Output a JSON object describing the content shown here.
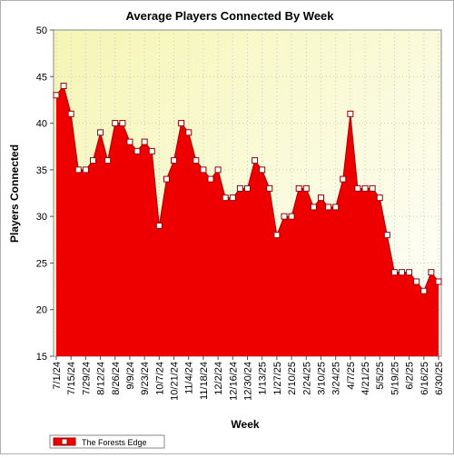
{
  "chart_data": {
    "type": "area",
    "title": "Average Players Connected By Week",
    "xlabel": "Week",
    "ylabel": "Players Connected",
    "ylim": [
      15,
      50
    ],
    "yticks": [
      15,
      20,
      25,
      30,
      35,
      40,
      45,
      50
    ],
    "grid": true,
    "legend_position": "bottom-left",
    "colors": {
      "fill": "#ee0000",
      "line": "#aa0000",
      "marker_fill": "#ffffff",
      "marker_stroke": "#990000",
      "plot_bg_from": "#f5f5b4",
      "plot_bg_to": "#ffffff"
    },
    "x_tick_labels": [
      "7/1/24",
      "7/15/24",
      "7/29/24",
      "8/12/24",
      "8/26/24",
      "9/9/24",
      "9/23/24",
      "10/7/24",
      "10/21/24",
      "11/4/24",
      "11/18/24",
      "12/2/24",
      "12/16/24",
      "12/30/24",
      "1/13/25",
      "1/27/25",
      "2/10/25",
      "2/24/25",
      "3/10/25",
      "3/24/25",
      "4/7/25",
      "4/21/25",
      "5/5/25",
      "5/19/25",
      "6/2/25",
      "6/16/25",
      "6/30/25"
    ],
    "series": [
      {
        "name": "The Forests Edge",
        "values": [
          43,
          44,
          41,
          35,
          35,
          36,
          39,
          36,
          40,
          40,
          38,
          37,
          38,
          37,
          29,
          34,
          36,
          40,
          39,
          36,
          35,
          34,
          35,
          32,
          32,
          33,
          33,
          36,
          35,
          33,
          28,
          30,
          30,
          33,
          33,
          31,
          32,
          31,
          31,
          34,
          41,
          33,
          33,
          33,
          32,
          28,
          24,
          24,
          24,
          23,
          22,
          24,
          23
        ]
      }
    ]
  }
}
